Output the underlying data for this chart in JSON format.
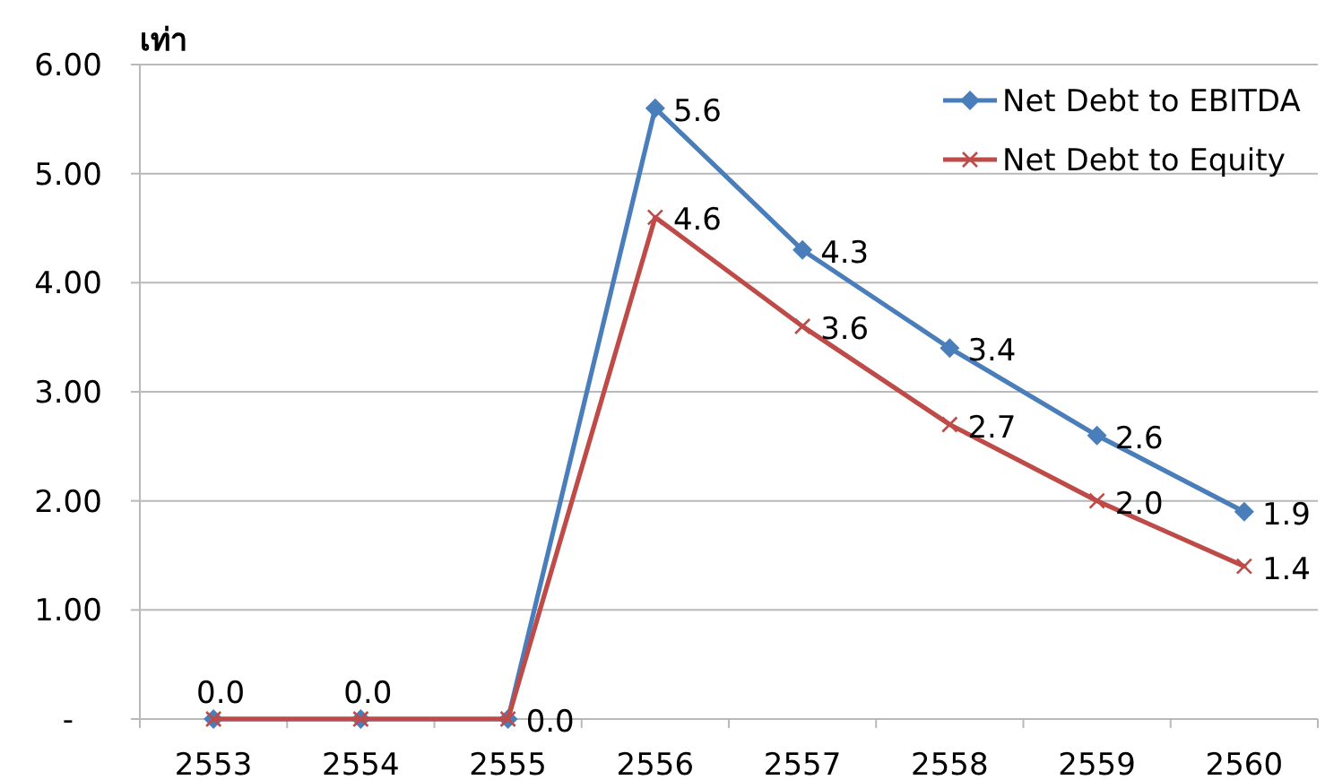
{
  "chart_data": {
    "type": "line",
    "ylabel": "เท่า",
    "categories": [
      "2553",
      "2554",
      "2555",
      "2556",
      "2557",
      "2558",
      "2559",
      "2560"
    ],
    "series": [
      {
        "name": "Net Debt to EBITDA",
        "color": "#4a7ebb",
        "marker": "diamond",
        "values": [
          0,
          0,
          0,
          5.6,
          4.3,
          3.4,
          2.6,
          1.9
        ],
        "value_labels": [
          "0.0",
          "0.0",
          "0.0",
          "5.6",
          "4.3",
          "3.4",
          "2.6",
          "1.9"
        ]
      },
      {
        "name": "Net Debt to Equity",
        "color": "#be4b48",
        "marker": "cross",
        "values": [
          0,
          0,
          0,
          4.6,
          3.6,
          2.7,
          2.0,
          1.4
        ],
        "value_labels": [
          null,
          null,
          null,
          "4.6",
          "3.6",
          "2.7",
          "2.0",
          "1.4"
        ]
      }
    ],
    "ylim": [
      0,
      6
    ],
    "yticks": [
      {
        "value": 0,
        "label": "-"
      },
      {
        "value": 1,
        "label": "1.00"
      },
      {
        "value": 2,
        "label": "2.00"
      },
      {
        "value": 3,
        "label": "3.00"
      },
      {
        "value": 4,
        "label": "4.00"
      },
      {
        "value": 5,
        "label": "5.00"
      },
      {
        "value": 6,
        "label": "6.00"
      }
    ],
    "grid": "y",
    "legend": "top right"
  }
}
